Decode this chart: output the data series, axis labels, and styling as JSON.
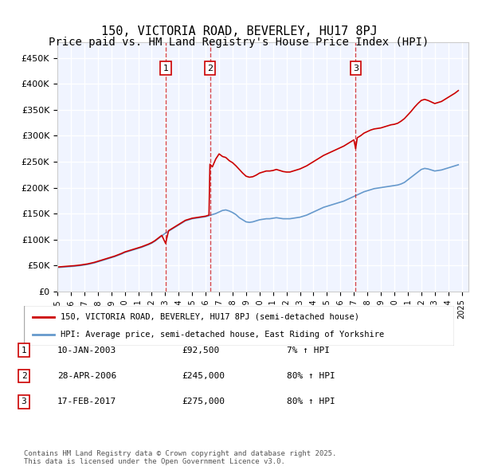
{
  "title": "150, VICTORIA ROAD, BEVERLEY, HU17 8PJ",
  "subtitle": "Price paid vs. HM Land Registry's House Price Index (HPI)",
  "title_fontsize": 11,
  "subtitle_fontsize": 10,
  "ylabel_ticks": [
    "£0",
    "£50K",
    "£100K",
    "£150K",
    "£200K",
    "£250K",
    "£300K",
    "£350K",
    "£400K",
    "£450K"
  ],
  "ytick_values": [
    0,
    50000,
    100000,
    150000,
    200000,
    250000,
    300000,
    350000,
    400000,
    450000
  ],
  "ylim": [
    0,
    480000
  ],
  "xlim_start": 1995.0,
  "xlim_end": 2025.5,
  "background_color": "#ffffff",
  "plot_bg_color": "#f0f4ff",
  "grid_color": "#ffffff",
  "sale_color": "#cc0000",
  "hpi_color": "#6699cc",
  "sale_label": "150, VICTORIA ROAD, BEVERLEY, HU17 8PJ (semi-detached house)",
  "hpi_label": "HPI: Average price, semi-detached house, East Riding of Yorkshire",
  "transactions": [
    {
      "num": 1,
      "date": "10-JAN-2003",
      "year": 2003.03,
      "price": 92500,
      "pct": "7%",
      "dir": "↑"
    },
    {
      "num": 2,
      "date": "28-APR-2006",
      "year": 2006.32,
      "price": 245000,
      "pct": "80%",
      "dir": "↑"
    },
    {
      "num": 3,
      "date": "17-FEB-2017",
      "year": 2017.13,
      "price": 275000,
      "pct": "80%",
      "dir": "↑"
    }
  ],
  "footnote": "Contains HM Land Registry data © Crown copyright and database right 2025.\nThis data is licensed under the Open Government Licence v3.0.",
  "hpi_data_x": [
    1995.0,
    1995.25,
    1995.5,
    1995.75,
    1996.0,
    1996.25,
    1996.5,
    1996.75,
    1997.0,
    1997.25,
    1997.5,
    1997.75,
    1998.0,
    1998.25,
    1998.5,
    1998.75,
    1999.0,
    1999.25,
    1999.5,
    1999.75,
    2000.0,
    2000.25,
    2000.5,
    2000.75,
    2001.0,
    2001.25,
    2001.5,
    2001.75,
    2002.0,
    2002.25,
    2002.5,
    2002.75,
    2003.0,
    2003.25,
    2003.5,
    2003.75,
    2004.0,
    2004.25,
    2004.5,
    2004.75,
    2005.0,
    2005.25,
    2005.5,
    2005.75,
    2006.0,
    2006.25,
    2006.5,
    2006.75,
    2007.0,
    2007.25,
    2007.5,
    2007.75,
    2008.0,
    2008.25,
    2008.5,
    2008.75,
    2009.0,
    2009.25,
    2009.5,
    2009.75,
    2010.0,
    2010.25,
    2010.5,
    2010.75,
    2011.0,
    2011.25,
    2011.5,
    2011.75,
    2012.0,
    2012.25,
    2012.5,
    2012.75,
    2013.0,
    2013.25,
    2013.5,
    2013.75,
    2014.0,
    2014.25,
    2014.5,
    2014.75,
    2015.0,
    2015.25,
    2015.5,
    2015.75,
    2016.0,
    2016.25,
    2016.5,
    2016.75,
    2017.0,
    2017.25,
    2017.5,
    2017.75,
    2018.0,
    2018.25,
    2018.5,
    2018.75,
    2019.0,
    2019.25,
    2019.5,
    2019.75,
    2020.0,
    2020.25,
    2020.5,
    2020.75,
    2021.0,
    2021.25,
    2021.5,
    2021.75,
    2022.0,
    2022.25,
    2022.5,
    2022.75,
    2023.0,
    2023.25,
    2023.5,
    2023.75,
    2024.0,
    2024.25,
    2024.5,
    2024.75
  ],
  "hpi_data_y": [
    46000,
    46500,
    47000,
    47500,
    48000,
    48500,
    49200,
    50000,
    51000,
    52000,
    53500,
    55000,
    57000,
    59000,
    61000,
    63000,
    65000,
    67000,
    69500,
    72000,
    75000,
    77000,
    79000,
    81000,
    83000,
    85000,
    87500,
    90000,
    93000,
    97000,
    102000,
    107000,
    112000,
    116000,
    120000,
    124000,
    128000,
    132000,
    136000,
    138000,
    140000,
    141000,
    142000,
    143000,
    144000,
    146000,
    148000,
    150000,
    153000,
    156000,
    157000,
    155000,
    152000,
    148000,
    142000,
    138000,
    134000,
    133000,
    134000,
    136000,
    138000,
    139000,
    140000,
    140000,
    141000,
    142000,
    141000,
    140000,
    140000,
    140000,
    141000,
    142000,
    143000,
    145000,
    147000,
    150000,
    153000,
    156000,
    159000,
    162000,
    164000,
    166000,
    168000,
    170000,
    172000,
    174000,
    177000,
    180000,
    183000,
    186000,
    189000,
    192000,
    194000,
    196000,
    198000,
    199000,
    200000,
    201000,
    202000,
    203000,
    204000,
    205000,
    207000,
    210000,
    215000,
    220000,
    225000,
    230000,
    235000,
    237000,
    236000,
    234000,
    232000,
    233000,
    234000,
    236000,
    238000,
    240000,
    242000,
    244000
  ],
  "sale_data_x": [
    1995.0,
    1995.25,
    1995.5,
    1995.75,
    1996.0,
    1996.25,
    1996.5,
    1996.75,
    1997.0,
    1997.25,
    1997.5,
    1997.75,
    1998.0,
    1998.25,
    1998.5,
    1998.75,
    1999.0,
    1999.25,
    1999.5,
    1999.75,
    2000.0,
    2000.25,
    2000.5,
    2000.75,
    2001.0,
    2001.25,
    2001.5,
    2001.75,
    2002.0,
    2002.25,
    2002.5,
    2002.75,
    2003.03,
    2003.25,
    2003.5,
    2003.75,
    2004.0,
    2004.25,
    2004.5,
    2004.75,
    2005.0,
    2005.25,
    2005.5,
    2005.75,
    2006.0,
    2006.25,
    2006.32,
    2006.5,
    2006.75,
    2007.0,
    2007.25,
    2007.5,
    2007.75,
    2008.0,
    2008.25,
    2008.5,
    2008.75,
    2009.0,
    2009.25,
    2009.5,
    2009.75,
    2010.0,
    2010.25,
    2010.5,
    2010.75,
    2011.0,
    2011.25,
    2011.5,
    2011.75,
    2012.0,
    2012.25,
    2012.5,
    2012.75,
    2013.0,
    2013.25,
    2013.5,
    2013.75,
    2014.0,
    2014.25,
    2014.5,
    2014.75,
    2015.0,
    2015.25,
    2015.5,
    2015.75,
    2016.0,
    2016.25,
    2016.5,
    2016.75,
    2017.0,
    2017.13,
    2017.25,
    2017.5,
    2017.75,
    2018.0,
    2018.25,
    2018.5,
    2018.75,
    2019.0,
    2019.25,
    2019.5,
    2019.75,
    2020.0,
    2020.25,
    2020.5,
    2020.75,
    2021.0,
    2021.25,
    2021.5,
    2021.75,
    2022.0,
    2022.25,
    2022.5,
    2022.75,
    2023.0,
    2023.25,
    2023.5,
    2023.75,
    2024.0,
    2024.25,
    2024.5,
    2024.75
  ],
  "sale_data_y": [
    47000,
    47500,
    48000,
    48500,
    49000,
    49500,
    50200,
    51000,
    52000,
    53000,
    54500,
    56000,
    58000,
    60000,
    62000,
    64000,
    66000,
    68000,
    70500,
    73000,
    76000,
    78000,
    80000,
    82000,
    84000,
    86000,
    88500,
    91000,
    94000,
    98000,
    103000,
    108000,
    92500,
    117000,
    121000,
    125000,
    129000,
    133000,
    137000,
    139000,
    141000,
    142000,
    143000,
    144000,
    145000,
    147000,
    245000,
    240000,
    255000,
    265000,
    260000,
    258000,
    252000,
    248000,
    242000,
    235000,
    228000,
    222000,
    220000,
    221000,
    224000,
    228000,
    230000,
    232000,
    232000,
    233000,
    235000,
    233000,
    231000,
    230000,
    230000,
    232000,
    234000,
    236000,
    239000,
    242000,
    246000,
    250000,
    254000,
    258000,
    262000,
    265000,
    268000,
    271000,
    274000,
    277000,
    280000,
    284000,
    288000,
    292000,
    275000,
    296000,
    300000,
    305000,
    308000,
    311000,
    313000,
    314000,
    315000,
    317000,
    319000,
    321000,
    322000,
    324000,
    328000,
    333000,
    340000,
    347000,
    355000,
    362000,
    368000,
    370000,
    368000,
    365000,
    362000,
    364000,
    366000,
    370000,
    374000,
    378000,
    382000,
    387000
  ]
}
